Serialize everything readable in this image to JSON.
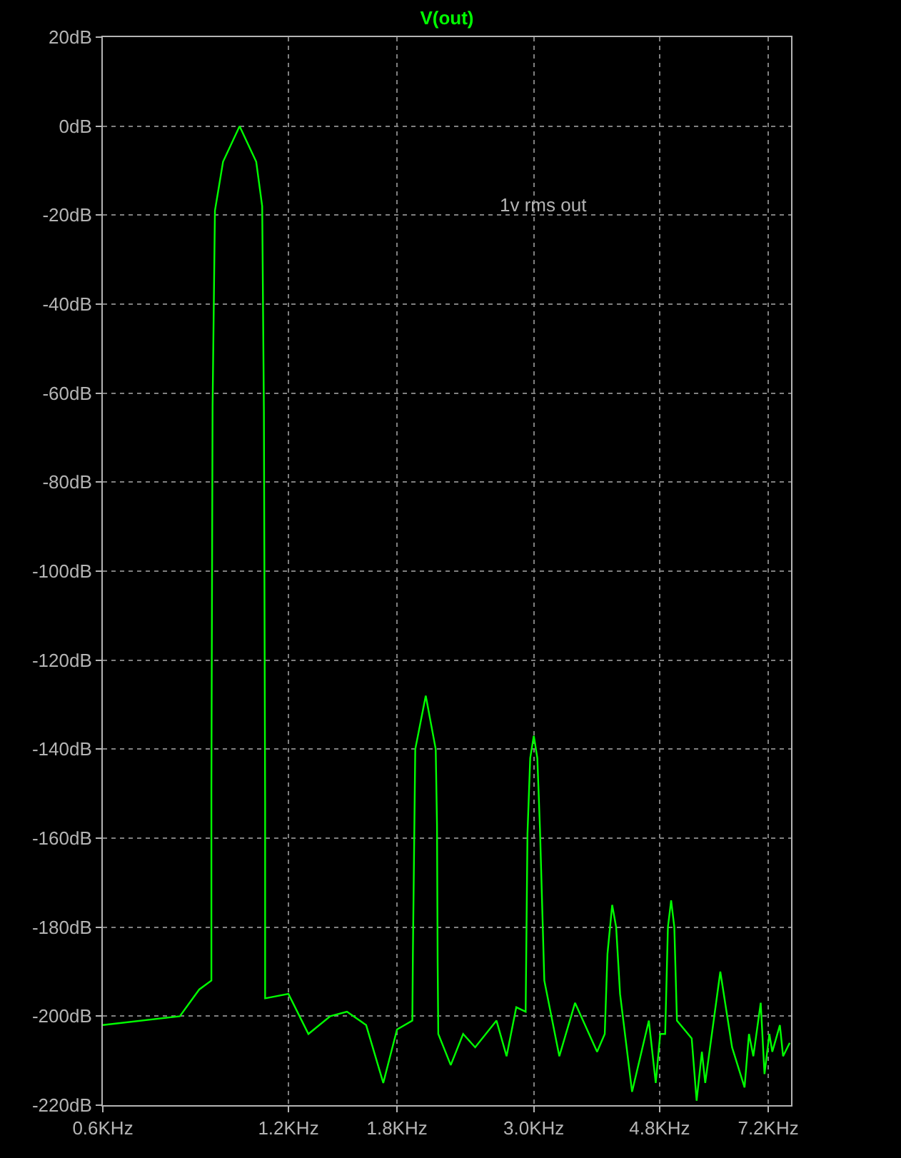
{
  "chart_data": {
    "type": "line",
    "title": "V(out)",
    "log": "x",
    "grid": true,
    "marker": "none",
    "line_style": "solid",
    "x": [
      0.6,
      0.8,
      0.86,
      0.9,
      0.9,
      0.904,
      0.912,
      0.94,
      1.0,
      1.064,
      1.088,
      1.095,
      1.1,
      1.1,
      1.2,
      1.293,
      1.403,
      1.493,
      1.604,
      1.71,
      1.8,
      1.906,
      1.91,
      1.927,
      2.004,
      2.08,
      2.09,
      2.095,
      2.1,
      2.2,
      2.304,
      2.41,
      2.61,
      2.71,
      2.81,
      2.91,
      2.93,
      2.96,
      3.0,
      3.04,
      3.07,
      3.12,
      3.3,
      3.5,
      3.8,
      3.91,
      3.95,
      4.02,
      4.08,
      4.14,
      4.33,
      4.61,
      4.73,
      4.81,
      4.9,
      4.95,
      5.01,
      5.07,
      5.12,
      5.41,
      5.51,
      5.62,
      5.69,
      6.02,
      6.29,
      6.59,
      6.7,
      6.81,
      7.0,
      7.1,
      7.23,
      7.31,
      7.52,
      7.61,
      7.8
    ],
    "series": [
      {
        "color": "#00ff00",
        "values": [
          -202,
          -200,
          -194,
          -192,
          -149,
          -63,
          -19,
          -8,
          0,
          -8,
          -18,
          -64,
          -152,
          -196,
          -195,
          -204,
          -200,
          -199,
          -202,
          -215,
          -203,
          -201,
          -186,
          -140,
          -128,
          -140,
          -157,
          -188,
          -204,
          -211,
          -204,
          -207,
          -201,
          -209,
          -198,
          -199,
          -159,
          -142,
          -137,
          -142,
          -158,
          -192,
          -209,
          -197,
          -208,
          -204,
          -186,
          -175,
          -180,
          -195,
          -217,
          -201,
          -215,
          -204,
          -204,
          -180,
          -174,
          -180,
          -201,
          -205,
          -219,
          -208,
          -215,
          -190,
          -207,
          -216,
          -204,
          -209,
          -197,
          -213,
          -204,
          -208,
          -202,
          -209,
          -206
        ]
      }
    ],
    "xlim": [
      0.6,
      7.84
    ],
    "xticks": [
      {
        "value": 0.6,
        "label": "0.6KHz"
      },
      {
        "value": 1.2,
        "label": "1.2KHz"
      },
      {
        "value": 1.8,
        "label": "1.8KHz"
      },
      {
        "value": 3.0,
        "label": "3.0KHz"
      },
      {
        "value": 4.8,
        "label": "4.8KHz"
      },
      {
        "value": 7.2,
        "label": "7.2KHz"
      }
    ],
    "ylim": [
      -220,
      20
    ],
    "yticks": [
      {
        "value": 20,
        "label": "20dB"
      },
      {
        "value": 0,
        "label": "0dB"
      },
      {
        "value": -20,
        "label": "-20dB"
      },
      {
        "value": -40,
        "label": "-40dB"
      },
      {
        "value": -60,
        "label": "-60dB"
      },
      {
        "value": -80,
        "label": "-80dB"
      },
      {
        "value": -100,
        "label": "-100dB"
      },
      {
        "value": -120,
        "label": "-120dB"
      },
      {
        "value": -140,
        "label": "-140dB"
      },
      {
        "value": -160,
        "label": "-160dB"
      },
      {
        "value": -180,
        "label": "-180dB"
      },
      {
        "value": -200,
        "label": "-200dB"
      },
      {
        "value": -220,
        "label": "-220dB"
      }
    ],
    "annotations": [
      "1v rms out"
    ]
  }
}
